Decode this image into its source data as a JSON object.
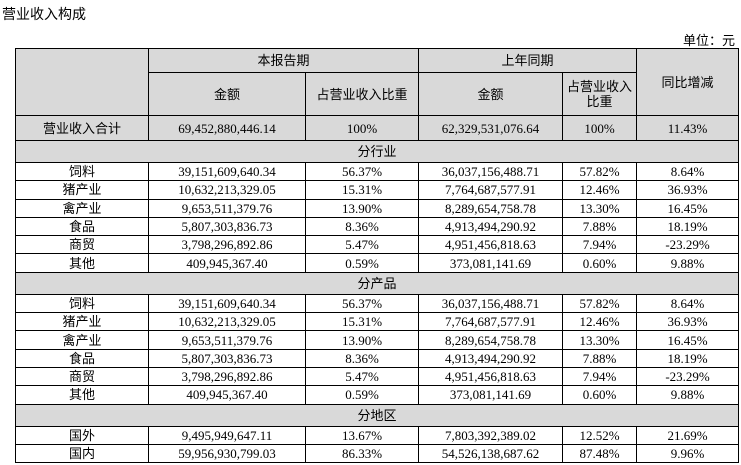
{
  "title": "营业收入构成",
  "unit": "单位：元",
  "table": {
    "header": {
      "current": "本报告期",
      "previous": "上年同期",
      "change": "同比增减",
      "columns": [
        "金额",
        "占营业收入比重",
        "金额",
        "占营业收入比重"
      ]
    },
    "total": [
      "营业收入合计",
      "69,452,880,446.14",
      "100%",
      "62,329,531,076.64",
      "100%",
      "11.43%"
    ],
    "sections": [
      {
        "name": "分行业",
        "rows": [
          [
            "饲料",
            "39,151,609,640.34",
            "56.37%",
            "36,037,156,488.71",
            "57.82%",
            "8.64%"
          ],
          [
            "猪产业",
            "10,632,213,329.05",
            "15.31%",
            "7,764,687,577.91",
            "12.46%",
            "36.93%"
          ],
          [
            "禽产业",
            "9,653,511,379.76",
            "13.90%",
            "8,289,654,758.78",
            "13.30%",
            "16.45%"
          ],
          [
            "食品",
            "5,807,303,836.73",
            "8.36%",
            "4,913,494,290.92",
            "7.88%",
            "18.19%"
          ],
          [
            "商贸",
            "3,798,296,892.86",
            "5.47%",
            "4,951,456,818.63",
            "7.94%",
            "-23.29%"
          ],
          [
            "其他",
            "409,945,367.40",
            "0.59%",
            "373,081,141.69",
            "0.60%",
            "9.88%"
          ]
        ]
      },
      {
        "name": "分产品",
        "rows": [
          [
            "饲料",
            "39,151,609,640.34",
            "56.37%",
            "36,037,156,488.71",
            "57.82%",
            "8.64%"
          ],
          [
            "猪产业",
            "10,632,213,329.05",
            "15.31%",
            "7,764,687,577.91",
            "12.46%",
            "36.93%"
          ],
          [
            "禽产业",
            "9,653,511,379.76",
            "13.90%",
            "8,289,654,758.78",
            "13.30%",
            "16.45%"
          ],
          [
            "食品",
            "5,807,303,836.73",
            "8.36%",
            "4,913,494,290.92",
            "7.88%",
            "18.19%"
          ],
          [
            "商贸",
            "3,798,296,892.86",
            "5.47%",
            "4,951,456,818.63",
            "7.94%",
            "-23.29%"
          ],
          [
            "其他",
            "409,945,367.40",
            "0.59%",
            "373,081,141.69",
            "0.60%",
            "9.88%"
          ]
        ]
      },
      {
        "name": "分地区",
        "rows": [
          [
            "国外",
            "9,495,949,647.11",
            "13.67%",
            "7,803,392,389.02",
            "12.52%",
            "21.69%"
          ],
          [
            "国内",
            "59,956,930,799.03",
            "86.33%",
            "54,526,138,687.62",
            "87.48%",
            "9.96%"
          ]
        ]
      }
    ]
  }
}
